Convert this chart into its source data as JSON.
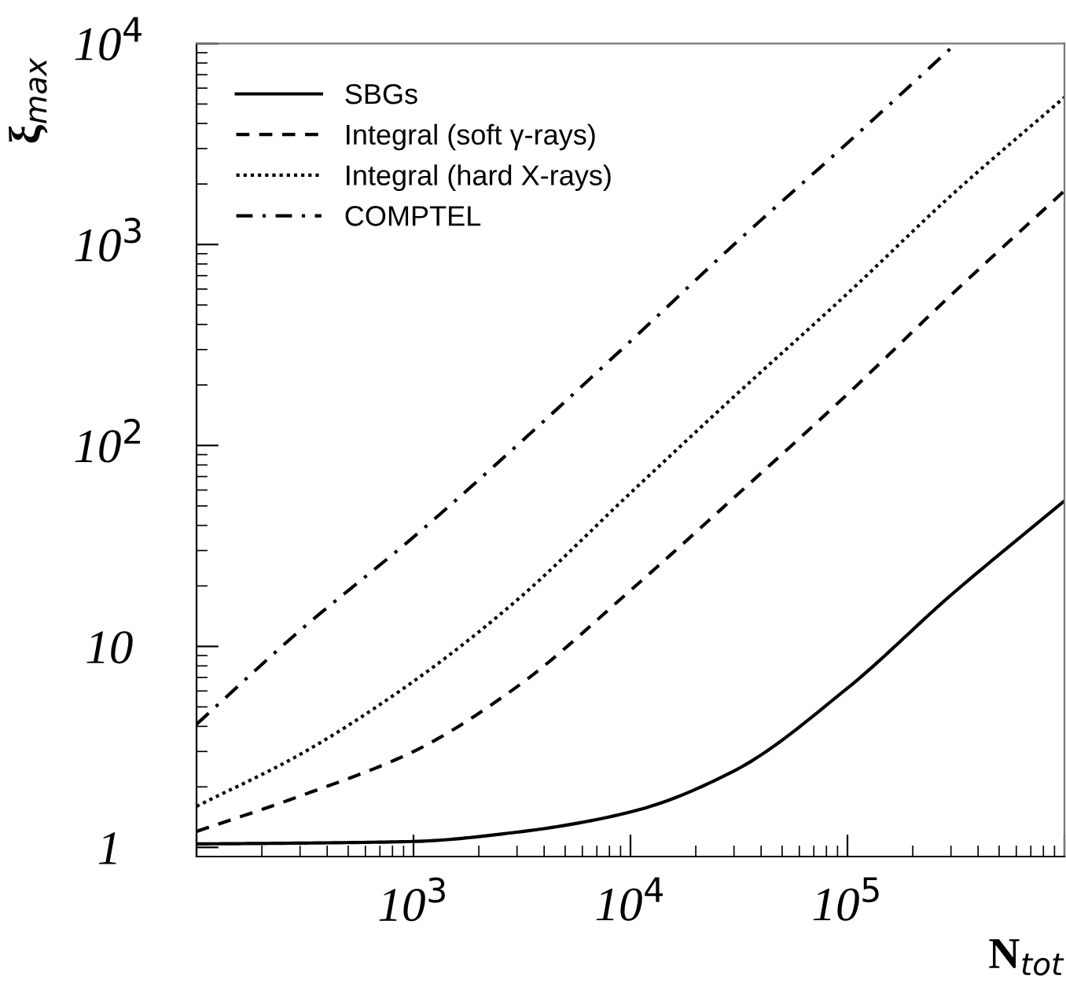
{
  "chart_data": {
    "type": "line",
    "xlabel": "N$_{tot}$",
    "ylabel": "ξ$_{max}$",
    "log": "xy",
    "legend": "top left",
    "grid": false,
    "xlim": [
      100,
      1000000
    ],
    "ylim": [
      0.9,
      10000
    ],
    "xticks": [
      {
        "value": 100,
        "label": null
      },
      {
        "value": 1000,
        "label": "10$^{3}$"
      },
      {
        "value": 10000,
        "label": "10$^{4}$"
      },
      {
        "value": 100000,
        "label": "10$^{5}$"
      },
      {
        "value": 1000000,
        "label": null
      }
    ],
    "yticks": [
      1,
      10,
      {
        "value": 100,
        "label": "10$^{2}$"
      },
      {
        "value": 1000,
        "label": "10$^{3}$"
      },
      {
        "value": 10000,
        "label": "10$^{4}$"
      }
    ],
    "series": [
      {
        "name": "SBGs",
        "color": "#000000",
        "line_style": "solid",
        "x": [
          100,
          300,
          1000,
          3000,
          10000,
          30000,
          100000,
          300000,
          1000000
        ],
        "values": [
          1.04,
          1.05,
          1.07,
          1.19,
          1.5,
          2.4,
          6.2,
          18,
          53
        ]
      },
      {
        "name": "Integral (soft γ-rays)",
        "color": "#000000",
        "line_style": "dashed",
        "x": [
          100,
          300,
          1000,
          3000,
          10000,
          30000,
          100000,
          300000,
          1000000
        ],
        "values": [
          1.2,
          1.8,
          3.0,
          6.3,
          19,
          55,
          180,
          560,
          1850
        ]
      },
      {
        "name": "Integral (hard X-rays)",
        "color": "#000000",
        "line_style": "dotted",
        "x": [
          100,
          300,
          1000,
          3000,
          10000,
          30000,
          100000,
          300000,
          1000000
        ],
        "values": [
          1.6,
          2.9,
          6.7,
          17,
          58,
          175,
          570,
          1750,
          5400
        ]
      },
      {
        "name": "COMPTEL",
        "color": "#000000",
        "line_style": "dashdot",
        "x": [
          100,
          300,
          1000,
          3000,
          10000,
          30000,
          100000,
          310000
        ],
        "values": [
          4.1,
          12,
          35,
          100,
          330,
          1000,
          3200,
          9800
        ]
      }
    ]
  }
}
